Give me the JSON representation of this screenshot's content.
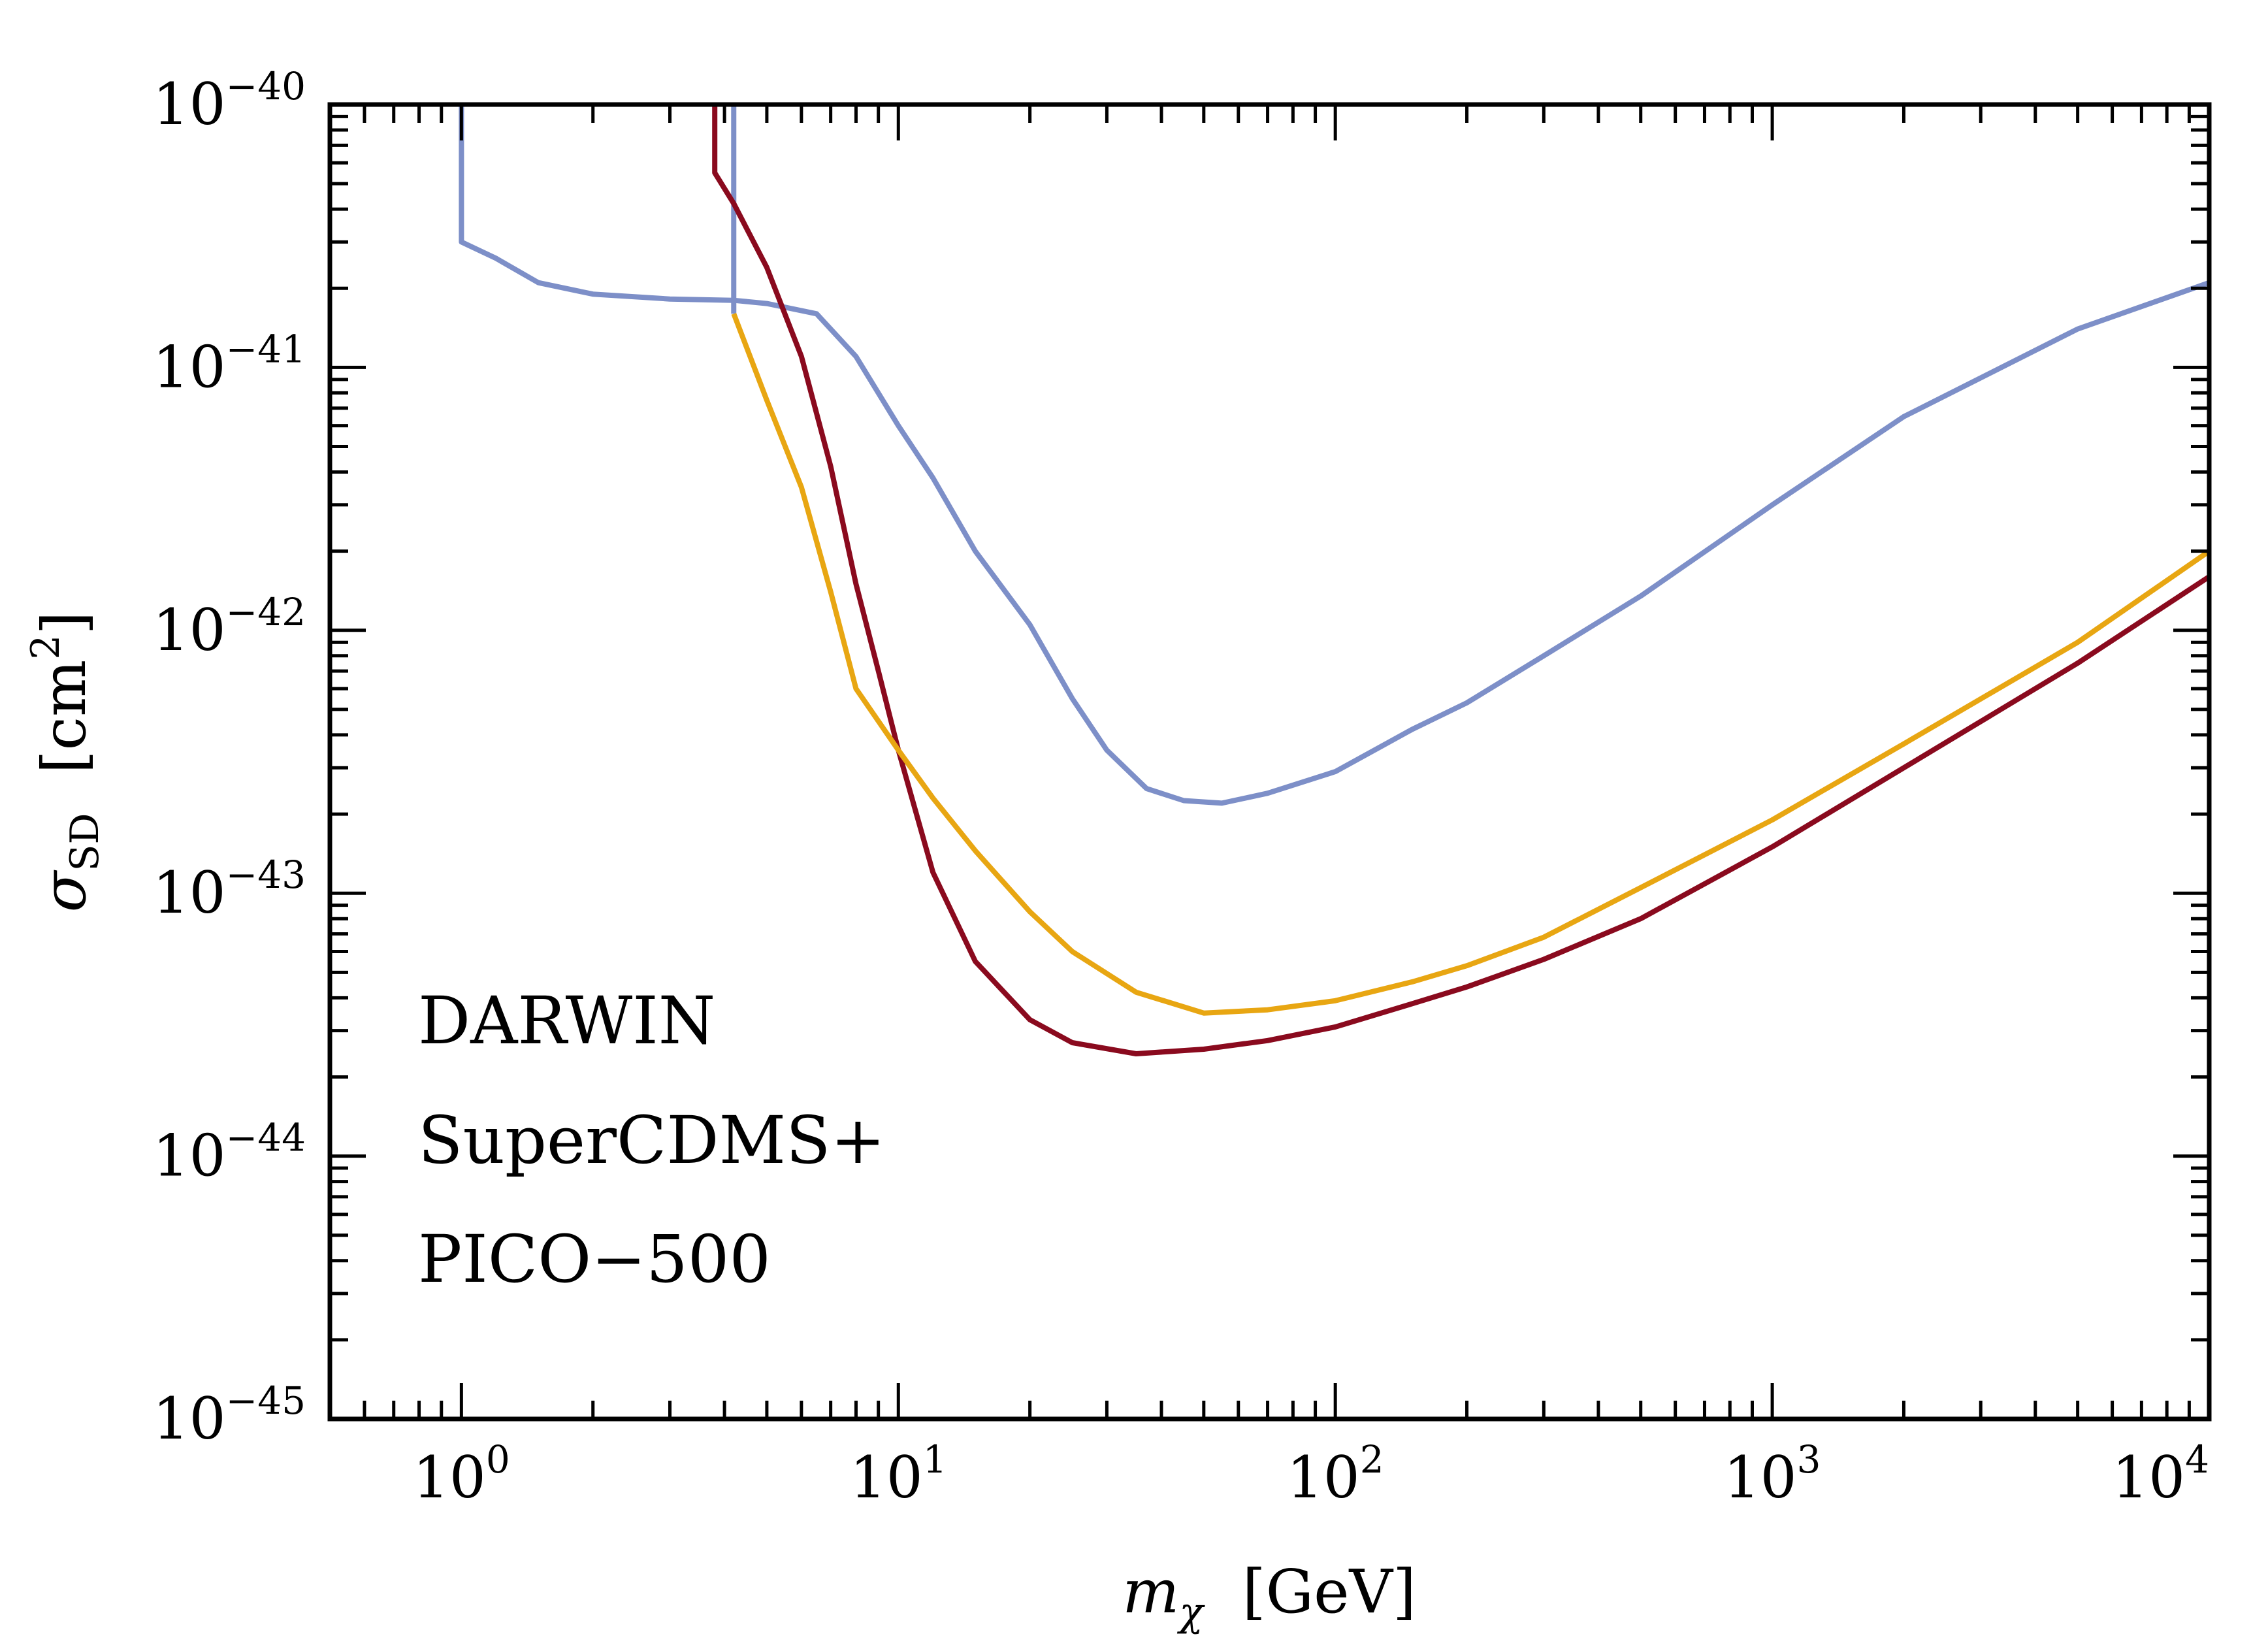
{
  "chart_data": {
    "type": "line",
    "xlabel": {
      "symbol": "m",
      "subscript": "χ",
      "unit": "[GeV]"
    },
    "ylabel": {
      "symbol": "σ",
      "subscript": "SD",
      "unit_open": "[cm",
      "unit_sup": "2",
      "unit_close": "]"
    },
    "xscale": "log",
    "yscale": "log",
    "xlim": [
      0.5,
      10000
    ],
    "ylim": [
      1e-45,
      1e-40
    ],
    "x_ticks": [
      {
        "base": "10",
        "exp": "0"
      },
      {
        "base": "10",
        "exp": "1"
      },
      {
        "base": "10",
        "exp": "2"
      },
      {
        "base": "10",
        "exp": "3"
      },
      {
        "base": "10",
        "exp": "4"
      }
    ],
    "y_ticks": [
      {
        "base": "10",
        "exp": "−45"
      },
      {
        "base": "10",
        "exp": "−44"
      },
      {
        "base": "10",
        "exp": "−43"
      },
      {
        "base": "10",
        "exp": "−42"
      },
      {
        "base": "10",
        "exp": "−41"
      },
      {
        "base": "10",
        "exp": "−40"
      }
    ],
    "grid": false,
    "legend_position": "bottom-left",
    "series": [
      {
        "name": "SuperCDMS+",
        "color": "#7d8fc8",
        "points": [
          [
            1.0,
            1e-40
          ],
          [
            1.0,
            3e-41
          ],
          [
            1.2,
            2.6e-41
          ],
          [
            1.5,
            2.1e-41
          ],
          [
            2.0,
            1.9e-41
          ],
          [
            3.0,
            1.82e-41
          ],
          [
            4.2,
            1.8e-41
          ],
          [
            5.0,
            1.75e-41
          ],
          [
            6.5,
            1.6e-41
          ],
          [
            8.0,
            1.1e-41
          ],
          [
            10.0,
            6e-42
          ],
          [
            12.0,
            3.8e-42
          ],
          [
            15.0,
            2e-42
          ],
          [
            20.0,
            1.05e-42
          ],
          [
            25.0,
            5.5e-43
          ],
          [
            30.0,
            3.5e-43
          ],
          [
            37.0,
            2.5e-43
          ],
          [
            45.0,
            2.25e-43
          ],
          [
            55.0,
            2.2e-43
          ],
          [
            70.0,
            2.4e-43
          ],
          [
            100.0,
            2.9e-43
          ],
          [
            150.0,
            4.2e-43
          ],
          [
            200.0,
            5.3e-43
          ],
          [
            300.0,
            8e-43
          ],
          [
            500.0,
            1.35e-42
          ],
          [
            1000.0,
            3e-42
          ],
          [
            2000.0,
            6.5e-42
          ],
          [
            5000.0,
            1.4e-41
          ],
          [
            10000.0,
            2.1e-41
          ]
        ],
        "vertical_edge": {
          "x": 4.2,
          "y_top": 1e-40,
          "y_bottom": 1.6e-41
        }
      },
      {
        "name": "DARWIN",
        "color": "#8a0a1e",
        "points": [
          [
            3.8,
            1e-40
          ],
          [
            3.8,
            5.5e-41
          ],
          [
            4.2,
            4.2e-41
          ],
          [
            5.0,
            2.4e-41
          ],
          [
            6.0,
            1.1e-41
          ],
          [
            7.0,
            4.2e-42
          ],
          [
            8.0,
            1.5e-42
          ],
          [
            9.0,
            7e-43
          ],
          [
            10.0,
            3.5e-43
          ],
          [
            12.0,
            1.2e-43
          ],
          [
            15.0,
            5.5e-44
          ],
          [
            20.0,
            3.3e-44
          ],
          [
            25.0,
            2.7e-44
          ],
          [
            35.0,
            2.45e-44
          ],
          [
            50.0,
            2.55e-44
          ],
          [
            70.0,
            2.75e-44
          ],
          [
            100.0,
            3.1e-44
          ],
          [
            150.0,
            3.8e-44
          ],
          [
            200.0,
            4.4e-44
          ],
          [
            300.0,
            5.6e-44
          ],
          [
            500.0,
            8e-44
          ],
          [
            1000.0,
            1.5e-43
          ],
          [
            2000.0,
            3e-43
          ],
          [
            5000.0,
            7.5e-43
          ],
          [
            10000.0,
            1.6e-42
          ]
        ]
      },
      {
        "name": "PICO−500",
        "color": "#e8a612",
        "points": [
          [
            4.2,
            1.6e-41
          ],
          [
            5.0,
            7.5e-42
          ],
          [
            6.0,
            3.5e-42
          ],
          [
            7.0,
            1.4e-42
          ],
          [
            8.0,
            6e-43
          ],
          [
            10.0,
            3.5e-43
          ],
          [
            12.0,
            2.3e-43
          ],
          [
            15.0,
            1.45e-43
          ],
          [
            20.0,
            8.5e-44
          ],
          [
            25.0,
            6e-44
          ],
          [
            35.0,
            4.2e-44
          ],
          [
            50.0,
            3.5e-44
          ],
          [
            70.0,
            3.6e-44
          ],
          [
            100.0,
            3.9e-44
          ],
          [
            150.0,
            4.6e-44
          ],
          [
            200.0,
            5.3e-44
          ],
          [
            300.0,
            6.8e-44
          ],
          [
            500.0,
            1.05e-43
          ],
          [
            1000.0,
            1.9e-43
          ],
          [
            2000.0,
            3.7e-43
          ],
          [
            5000.0,
            9e-43
          ],
          [
            10000.0,
            2e-42
          ]
        ]
      }
    ],
    "legend": [
      {
        "label": "DARWIN",
        "color": "#8a0a1e"
      },
      {
        "label": "SuperCDMS+",
        "color": "#7d8fc8"
      },
      {
        "label": "PICO−500",
        "color": "#e8a612"
      }
    ]
  }
}
